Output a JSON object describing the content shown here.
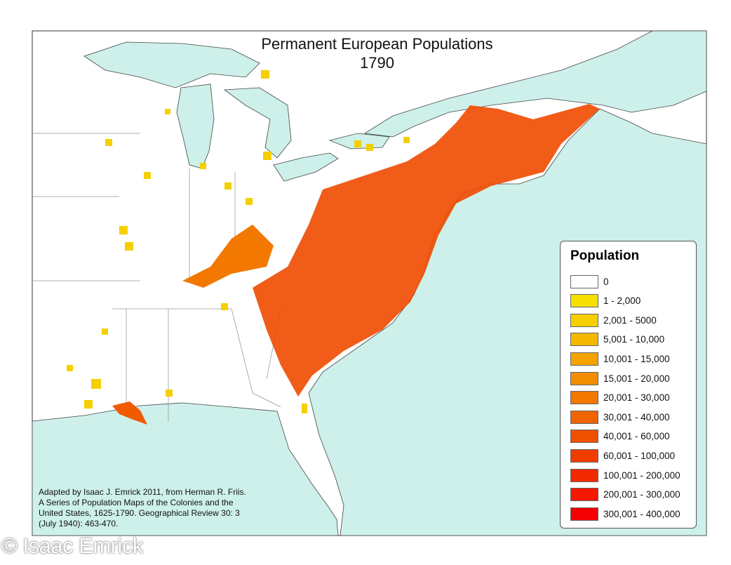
{
  "title": {
    "line1": "Permanent European Populations",
    "line2": "1790"
  },
  "legend": {
    "title": "Population",
    "items": [
      {
        "label": "0",
        "color": "#ffffff"
      },
      {
        "label": "1 - 2,000",
        "color": "#f5e000"
      },
      {
        "label": "2,001 - 5000",
        "color": "#f5cf00"
      },
      {
        "label": "5,001 - 10,000",
        "color": "#f4b800"
      },
      {
        "label": "10,001 - 15,000",
        "color": "#f4a300"
      },
      {
        "label": "15,001 - 20,000",
        "color": "#f28d00"
      },
      {
        "label": "20,001 - 30,000",
        "color": "#f27800"
      },
      {
        "label": "30,001 - 40,000",
        "color": "#f06400"
      },
      {
        "label": "40,001 - 60,000",
        "color": "#ef5000"
      },
      {
        "label": "60,001 - 100,000",
        "color": "#f03c00"
      },
      {
        "label": "100,001 - 200,000",
        "color": "#f22a00"
      },
      {
        "label": "200,001 - 300,000",
        "color": "#f41800"
      },
      {
        "label": "300,001 - 400,000",
        "color": "#f40000"
      }
    ]
  },
  "credit": [
    "Adapted by Isaac J. Emrick 2011, from Herman R. Friis.",
    "A Series of Population Maps of the Colonies and the",
    "United States, 1625-1790. Geographical Review 30: 3",
    "(July 1940): 463-470."
  ],
  "watermark": "© Isaac Emrick",
  "colors": {
    "water": "#cdf0ea",
    "land": "#ffffff",
    "border": "#888888"
  }
}
